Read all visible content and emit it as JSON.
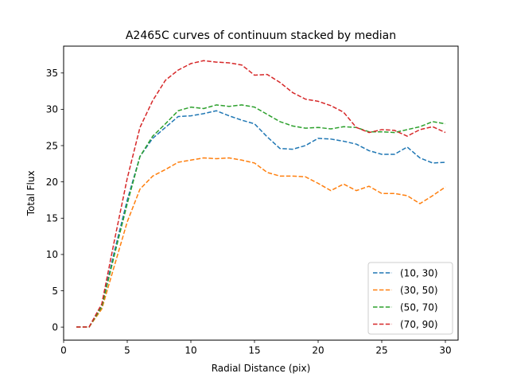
{
  "chart_data": {
    "type": "line",
    "title": "A2465C curves of continuum stacked by median",
    "xlabel": "Radial Distance (pix)",
    "ylabel": "Total Flux",
    "xlim": [
      0,
      31
    ],
    "ylim": [
      -1.8,
      38.7
    ],
    "xticks": [
      0,
      5,
      10,
      15,
      20,
      25,
      30
    ],
    "yticks": [
      0,
      5,
      10,
      15,
      20,
      25,
      30,
      35
    ],
    "grid": false,
    "legend_position": "lower-right",
    "line_style": "dashed",
    "x": [
      1,
      2,
      3,
      4,
      5,
      6,
      7,
      8,
      9,
      10,
      11,
      12,
      13,
      14,
      15,
      16,
      17,
      18,
      19,
      20,
      21,
      22,
      23,
      24,
      25,
      26,
      27,
      28,
      29,
      30
    ],
    "series": [
      {
        "name": "(10, 30)",
        "color": "#1f77b4",
        "values": [
          0.0,
          0.0,
          3.0,
          10.5,
          17.5,
          23.5,
          26.0,
          27.5,
          29.0,
          29.1,
          29.4,
          29.8,
          29.1,
          28.5,
          28.0,
          26.2,
          24.6,
          24.5,
          25.0,
          26.0,
          25.9,
          25.6,
          25.2,
          24.3,
          23.8,
          23.8,
          24.8,
          23.3,
          22.6,
          22.7
        ]
      },
      {
        "name": "(30, 50)",
        "color": "#ff7f0e",
        "values": [
          0.0,
          0.0,
          2.5,
          8.5,
          14.5,
          19.0,
          20.8,
          21.7,
          22.7,
          23.0,
          23.3,
          23.2,
          23.3,
          23.0,
          22.6,
          21.3,
          20.8,
          20.8,
          20.7,
          19.8,
          18.8,
          19.7,
          18.8,
          19.4,
          18.4,
          18.4,
          18.1,
          17.0,
          18.1,
          19.3
        ]
      },
      {
        "name": "(50, 70)",
        "color": "#2ca02c",
        "values": [
          0.0,
          0.0,
          2.8,
          10.0,
          17.0,
          23.5,
          26.3,
          28.0,
          29.8,
          30.3,
          30.1,
          30.6,
          30.4,
          30.6,
          30.3,
          29.3,
          28.3,
          27.7,
          27.4,
          27.5,
          27.3,
          27.6,
          27.5,
          26.9,
          26.9,
          26.8,
          27.2,
          27.6,
          28.3,
          28.0
        ]
      },
      {
        "name": "(70, 90)",
        "color": "#d62728",
        "values": [
          0.0,
          0.0,
          3.2,
          12.0,
          20.5,
          27.5,
          31.2,
          34.0,
          35.4,
          36.3,
          36.7,
          36.5,
          36.4,
          36.1,
          34.7,
          34.8,
          33.7,
          32.3,
          31.4,
          31.1,
          30.5,
          29.6,
          27.5,
          26.8,
          27.2,
          27.1,
          26.3,
          27.2,
          27.6,
          26.8
        ]
      }
    ]
  }
}
